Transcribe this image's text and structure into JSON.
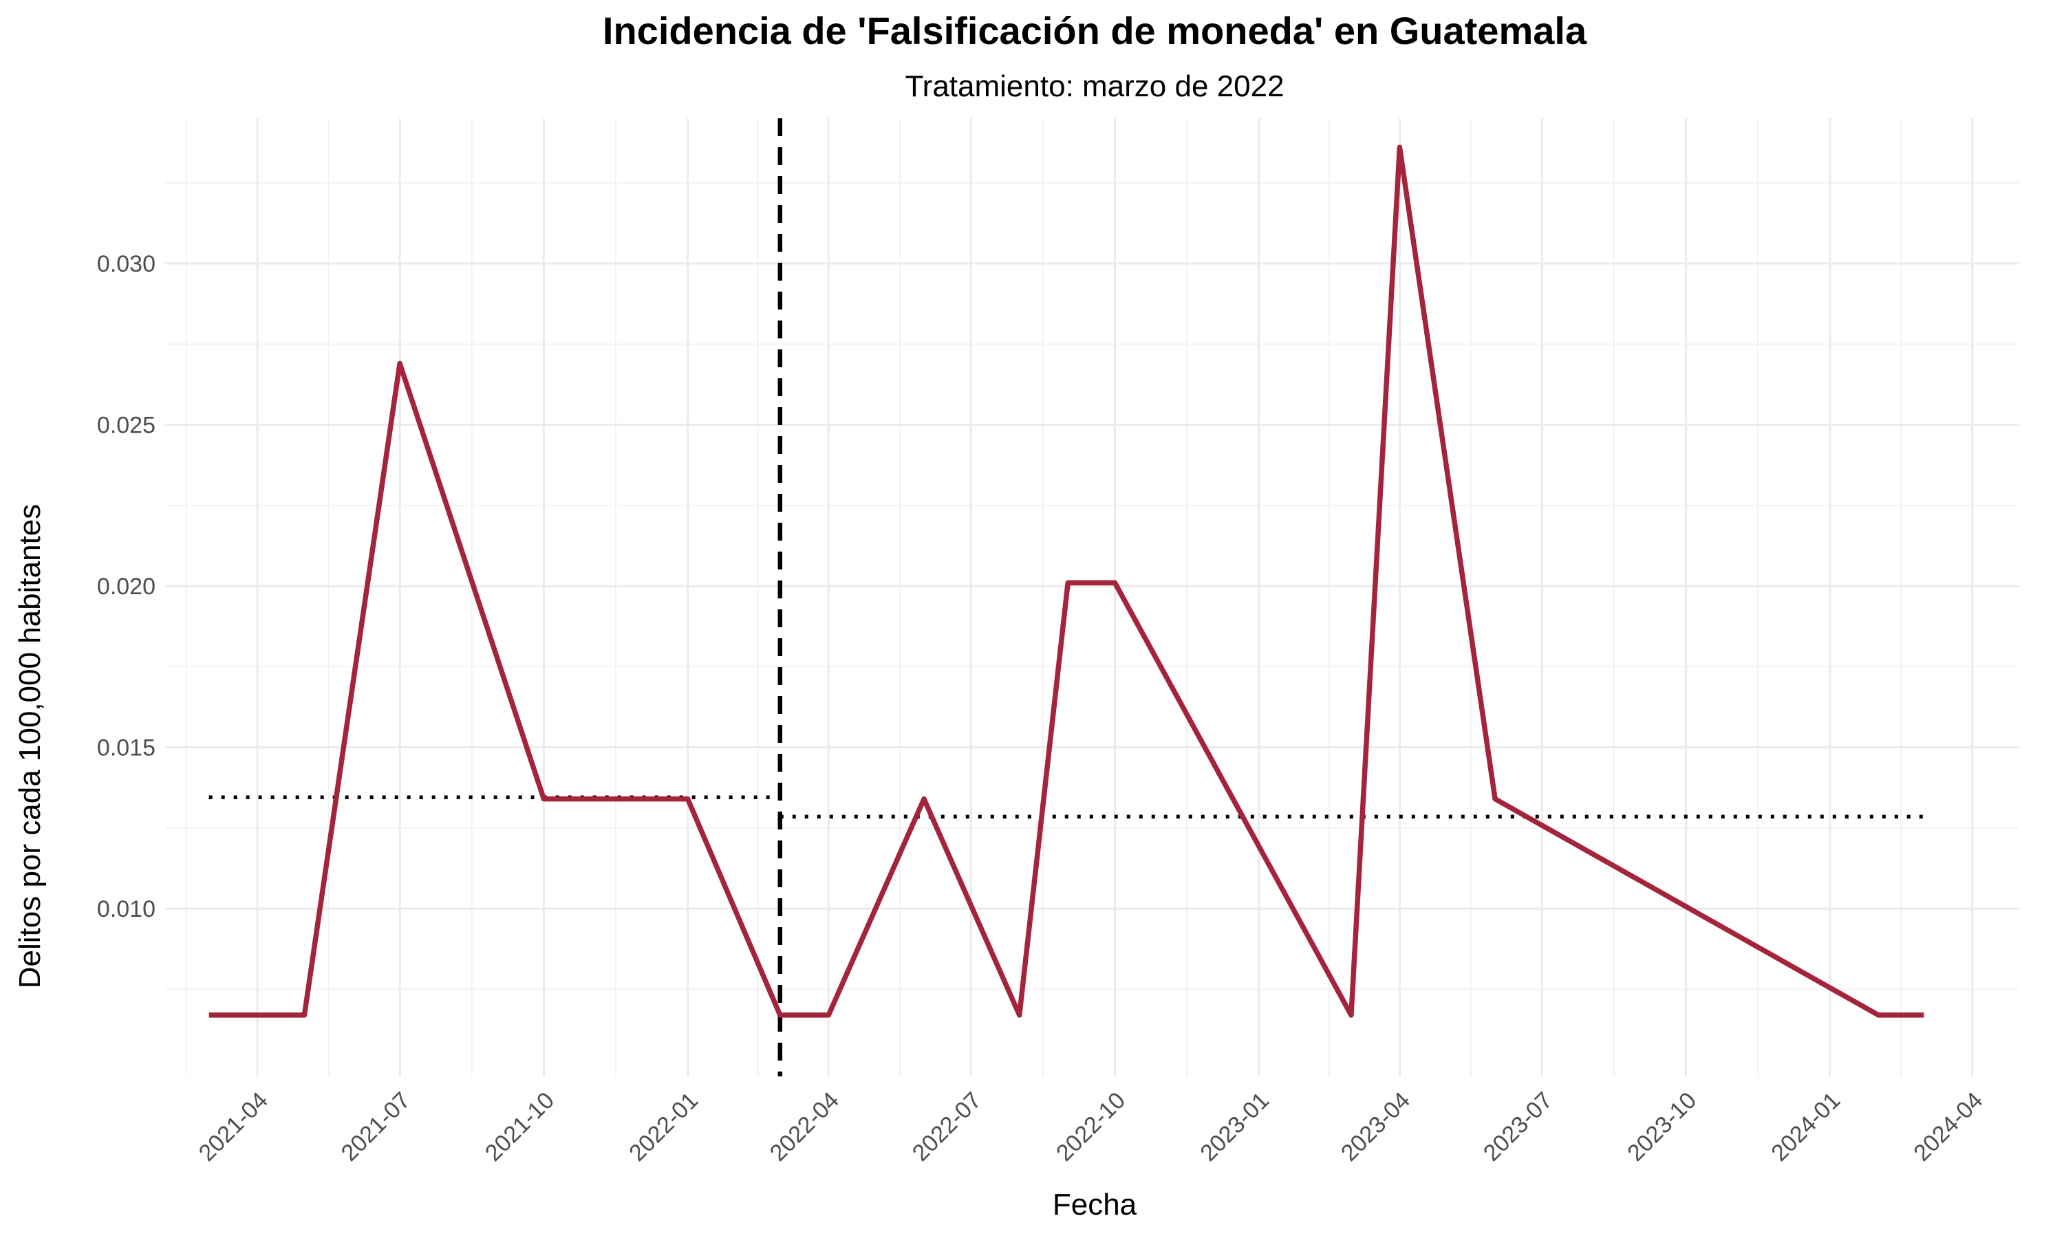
{
  "chart_data": {
    "type": "line",
    "title": "Incidencia de 'Falsificación de moneda' en Guatemala",
    "subtitle": "Tratamiento: marzo de 2022",
    "xlabel": "Fecha",
    "ylabel": "Delitos por cada 100,000 habitantes",
    "x_tick_labels": [
      "2021-04",
      "2021-07",
      "2021-10",
      "2022-01",
      "2022-04",
      "2022-07",
      "2022-10",
      "2023-01",
      "2023-04",
      "2023-07",
      "2023-10",
      "2024-01",
      "2024-04"
    ],
    "y_tick_labels": [
      "0.010",
      "0.015",
      "0.020",
      "0.025",
      "0.030"
    ],
    "y_ticks": [
      0.01,
      0.015,
      0.02,
      0.025,
      0.03
    ],
    "xlim": [
      "2021-02-01",
      "2024-05-01"
    ],
    "ylim": [
      0.0048,
      0.0345
    ],
    "grid": true,
    "series": [
      {
        "color": "#A4243B",
        "points": [
          {
            "x": "2021-03",
            "y": 0.0067
          },
          {
            "x": "2021-04",
            "y": 0.0067
          },
          {
            "x": "2021-05",
            "y": 0.0067
          },
          {
            "x": "2021-07",
            "y": 0.0269
          },
          {
            "x": "2021-10",
            "y": 0.0134
          },
          {
            "x": "2021-11",
            "y": 0.0134
          },
          {
            "x": "2021-12",
            "y": 0.0134
          },
          {
            "x": "2022-01",
            "y": 0.0134
          },
          {
            "x": "2022-03",
            "y": 0.0067
          },
          {
            "x": "2022-04",
            "y": 0.0067
          },
          {
            "x": "2022-06",
            "y": 0.0134
          },
          {
            "x": "2022-08",
            "y": 0.0067
          },
          {
            "x": "2022-09",
            "y": 0.0201
          },
          {
            "x": "2022-10",
            "y": 0.0201
          },
          {
            "x": "2023-03",
            "y": 0.0067
          },
          {
            "x": "2023-04",
            "y": 0.0336
          },
          {
            "x": "2023-06",
            "y": 0.0134
          },
          {
            "x": "2024-02",
            "y": 0.0067
          },
          {
            "x": "2024-03",
            "y": 0.0067
          }
        ]
      }
    ],
    "treatment_line": {
      "x": "2022-03",
      "style": "dashed",
      "color": "#000000"
    },
    "mean_lines": [
      {
        "x_start": "2021-03",
        "x_end": "2022-03",
        "y": 0.01345,
        "style": "dotted",
        "color": "#000000"
      },
      {
        "x_start": "2022-03",
        "x_end": "2024-03",
        "y": 0.01285,
        "style": "dotted",
        "color": "#000000"
      }
    ]
  }
}
